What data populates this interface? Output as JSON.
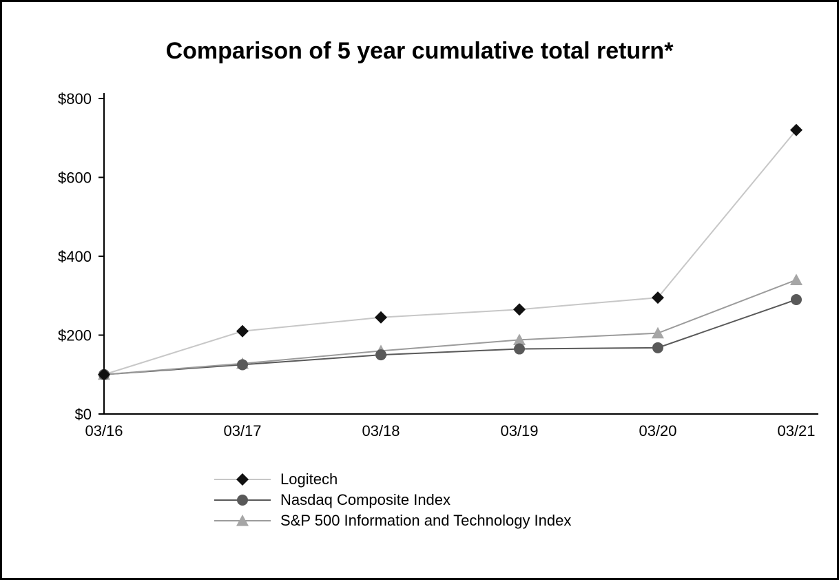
{
  "chart_data": {
    "type": "line",
    "title": "Comparison of 5 year cumulative total return*",
    "categories": [
      "03/16",
      "03/17",
      "03/18",
      "03/19",
      "03/20",
      "03/21"
    ],
    "series": [
      {
        "name": "Logitech",
        "marker": "diamond",
        "marker_color": "#111111",
        "line_color": "#c7c7c7",
        "values": [
          100,
          210,
          245,
          265,
          295,
          720
        ]
      },
      {
        "name": "Nasdaq Composite Index",
        "marker": "circle",
        "marker_color": "#595959",
        "line_color": "#595959",
        "values": [
          100,
          125,
          150,
          165,
          168,
          290
        ]
      },
      {
        "name": "S&P 500 Information and Technology Index",
        "marker": "triangle",
        "marker_color": "#a6a6a6",
        "line_color": "#9b9b9b",
        "values": [
          100,
          128,
          160,
          188,
          205,
          340
        ]
      }
    ],
    "ylim": [
      0,
      800
    ],
    "y_ticks": [
      "$0",
      "$200",
      "$400",
      "$600",
      "$800"
    ],
    "y_tick_values": [
      0,
      200,
      400,
      600,
      800
    ],
    "grid": false,
    "legend_position": "bottom-left",
    "axis_color": "#000000"
  }
}
